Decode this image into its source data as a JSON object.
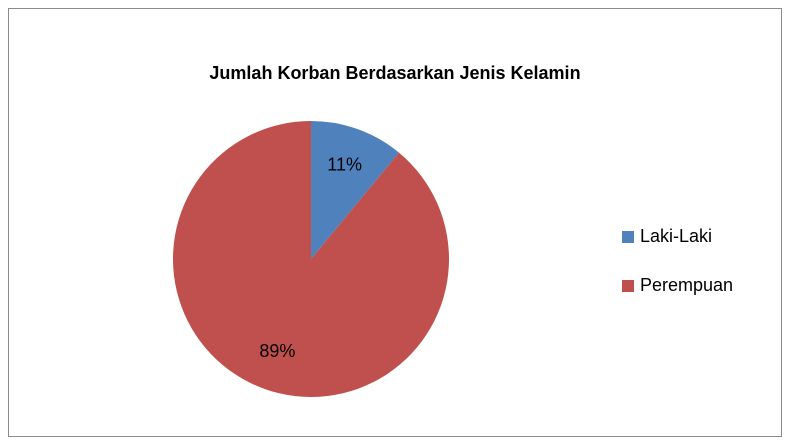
{
  "chart_data": {
    "type": "pie",
    "title": "Jumlah Korban Berdasarkan Jenis Kelamin",
    "categories": [
      "Laki-Laki",
      "Perempuan"
    ],
    "values": [
      11,
      89
    ],
    "value_labels": [
      "11%",
      "89%"
    ],
    "colors": [
      "#4f81bd",
      "#c0504d"
    ],
    "legend": "right"
  }
}
